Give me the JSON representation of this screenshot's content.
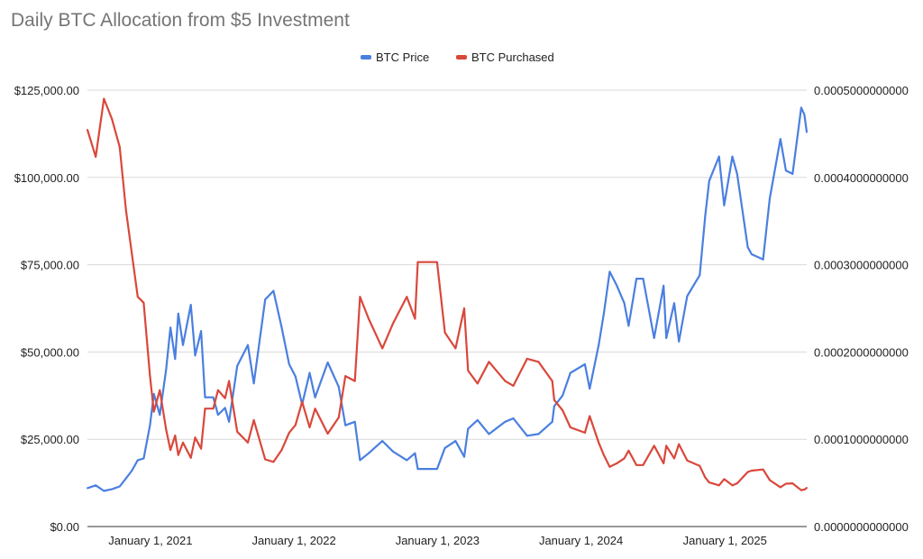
{
  "chart_data": {
    "type": "line",
    "title": "Daily BTC Allocation from $5 Investment",
    "legend_position": "top",
    "grid": true,
    "x_tick_labels": [
      "January 1, 2021",
      "January 1, 2022",
      "January 1, 2023",
      "January 1, 2024",
      "January 1, 2025"
    ],
    "x_ticks": [
      "2021-01-01",
      "2022-01-01",
      "2023-01-01",
      "2024-01-01",
      "2025-01-01"
    ],
    "xlim": [
      "2020-07-25",
      "2025-07-28"
    ],
    "y_left": {
      "ylim": [
        0,
        125000
      ],
      "tick_labels": [
        "$0.00",
        "$25,000.00",
        "$50,000.00",
        "$75,000.00",
        "$100,000.00",
        "$125,000.00"
      ]
    },
    "y_right": {
      "ylim": [
        0,
        0.0005
      ],
      "tick_labels": [
        "0.0000000000000",
        "0.0001000000000",
        "0.0002000000000",
        "0.0003000000000",
        "0.0004000000000",
        "0.0005000000000"
      ]
    },
    "x": [
      "2020-07-25",
      "2020-08-15",
      "2020-09-05",
      "2020-09-25",
      "2020-10-15",
      "2020-10-31",
      "2020-11-15",
      "2020-11-30",
      "2020-12-15",
      "2020-12-31",
      "2021-01-10",
      "2021-01-25",
      "2021-02-10",
      "2021-02-21",
      "2021-03-05",
      "2021-03-13",
      "2021-03-25",
      "2021-04-14",
      "2021-04-25",
      "2021-05-10",
      "2021-05-20",
      "2021-06-10",
      "2021-06-22",
      "2021-07-10",
      "2021-07-20",
      "2021-08-10",
      "2021-09-06",
      "2021-09-21",
      "2021-10-20",
      "2021-11-10",
      "2021-12-01",
      "2021-12-20",
      "2022-01-05",
      "2022-01-22",
      "2022-02-10",
      "2022-02-24",
      "2022-03-28",
      "2022-04-25",
      "2022-05-12",
      "2022-06-05",
      "2022-06-18",
      "2022-07-10",
      "2022-08-14",
      "2022-09-10",
      "2022-10-15",
      "2022-11-05",
      "2022-11-12",
      "2022-12-31",
      "2023-01-20",
      "2023-02-16",
      "2023-03-10",
      "2023-03-20",
      "2023-04-13",
      "2023-05-12",
      "2023-06-22",
      "2023-07-13",
      "2023-08-17",
      "2023-09-15",
      "2023-10-20",
      "2023-10-25",
      "2023-11-15",
      "2023-12-05",
      "2024-01-11",
      "2024-01-23",
      "2024-02-15",
      "2024-02-28",
      "2024-03-14",
      "2024-04-01",
      "2024-04-20",
      "2024-05-01",
      "2024-05-21",
      "2024-06-07",
      "2024-07-05",
      "2024-07-29",
      "2024-08-05",
      "2024-08-25",
      "2024-09-06",
      "2024-09-27",
      "2024-10-29",
      "2024-11-12",
      "2024-11-22",
      "2024-12-17",
      "2024-12-30",
      "2025-01-20",
      "2025-02-01",
      "2025-02-28",
      "2025-03-10",
      "2025-04-08",
      "2025-04-25",
      "2025-05-22",
      "2025-06-05",
      "2025-06-22",
      "2025-07-14",
      "2025-07-22",
      "2025-07-28"
    ],
    "series": [
      {
        "name": "BTC Price",
        "axis": "left",
        "color": "#4a7fe0",
        "values": [
          11000,
          11800,
          10200,
          10700,
          11500,
          13800,
          16000,
          19000,
          19500,
          29000,
          38000,
          32000,
          45000,
          57000,
          48000,
          61000,
          52000,
          63500,
          49000,
          56000,
          37000,
          37000,
          32000,
          34000,
          30000,
          46000,
          52000,
          41000,
          65000,
          67500,
          57000,
          46500,
          43000,
          35000,
          44000,
          37000,
          47000,
          40000,
          29000,
          30000,
          19000,
          21000,
          24500,
          21500,
          19000,
          21000,
          16500,
          16500,
          22500,
          24500,
          20000,
          28000,
          30500,
          26500,
          30000,
          31000,
          26000,
          26500,
          30000,
          34500,
          37500,
          44000,
          46500,
          39500,
          52000,
          61000,
          73000,
          69000,
          64000,
          57500,
          71000,
          71000,
          54000,
          69000,
          54000,
          64000,
          53000,
          66000,
          72000,
          89000,
          99000,
          106000,
          92000,
          106000,
          101000,
          80000,
          78000,
          76500,
          94000,
          111000,
          102000,
          101000,
          120000,
          118000,
          113000
        ]
      },
      {
        "name": "BTC Purchased",
        "axis": "right",
        "color": "#d9483b",
        "values": [
          0.0004545,
          0.0004237,
          0.0004902,
          0.0004673,
          0.0004348,
          0.0003623,
          0.0003125,
          0.0002632,
          0.0002564,
          0.0001724,
          0.0001316,
          0.0001563,
          0.0001111,
          8.772e-05,
          0.0001042,
          8.197e-05,
          9.615e-05,
          7.874e-05,
          0.000102,
          8.929e-05,
          0.0001351,
          0.0001351,
          0.0001563,
          0.0001471,
          0.0001667,
          0.0001087,
          9.615e-05,
          0.000122,
          7.692e-05,
          7.407e-05,
          8.772e-05,
          0.0001075,
          0.0001163,
          0.0001429,
          0.0001136,
          0.0001351,
          0.0001064,
          0.000125,
          0.0001724,
          0.0001667,
          0.0002632,
          0.0002381,
          0.0002041,
          0.0002326,
          0.0002632,
          0.0002381,
          0.000303,
          0.000303,
          0.0002222,
          0.0002041,
          0.00025,
          0.0001786,
          0.0001639,
          0.0001887,
          0.0001667,
          0.0001613,
          0.0001923,
          0.0001887,
          0.0001667,
          0.0001449,
          0.0001333,
          0.0001136,
          0.0001075,
          0.0001266,
          9.615e-05,
          8.197e-05,
          6.849e-05,
          7.246e-05,
          7.813e-05,
          8.696e-05,
          7.042e-05,
          7.042e-05,
          9.259e-05,
          7.246e-05,
          9.259e-05,
          7.813e-05,
          9.434e-05,
          7.576e-05,
          6.944e-05,
          5.618e-05,
          5.051e-05,
          4.717e-05,
          5.435e-05,
          4.717e-05,
          4.95e-05,
          6.25e-05,
          6.41e-05,
          6.536e-05,
          5.319e-05,
          4.505e-05,
          4.902e-05,
          4.95e-05,
          4.167e-05,
          4.237e-05,
          4.425e-05
        ]
      }
    ]
  }
}
